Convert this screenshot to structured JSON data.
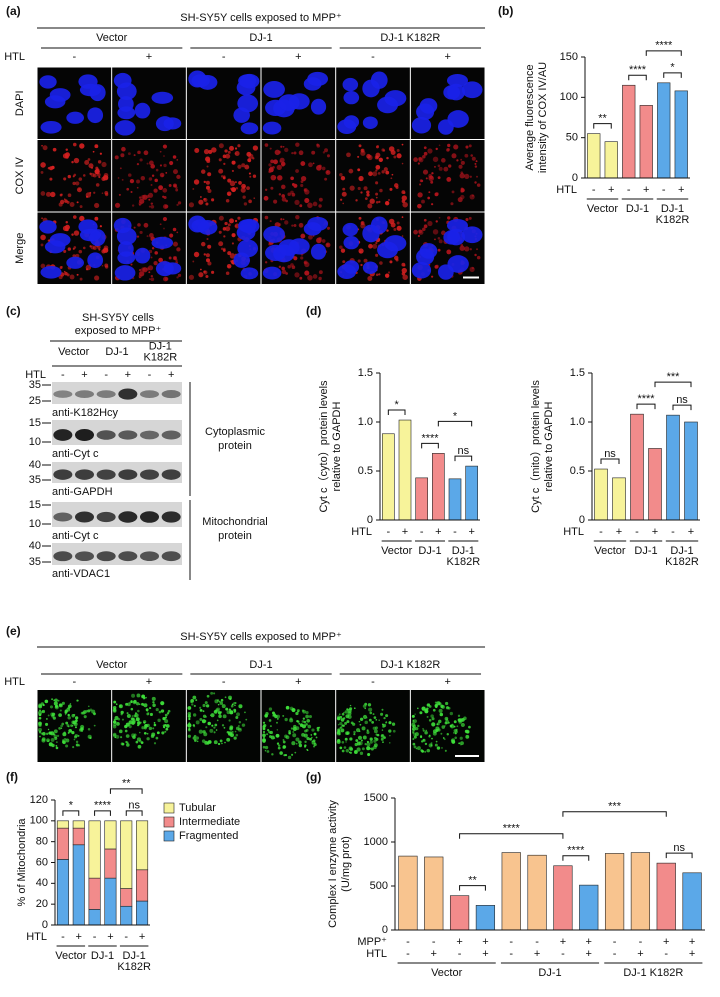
{
  "panel_a": {
    "label": "(a)",
    "title": "SH-SY5Y cells exposed to MPP⁺",
    "groups": [
      "Vector",
      "DJ-1",
      "DJ-1 K182R"
    ],
    "row_label": "HTL",
    "conditions": [
      "-",
      "+",
      "-",
      "+",
      "-",
      "+"
    ],
    "channels": [
      "DAPI",
      "COX IV",
      "Merge"
    ]
  },
  "panel_c": {
    "label": "(c)",
    "title": [
      "SH-SY5Y cells",
      "exposed to MPP⁺"
    ],
    "groups": [
      [
        "Vector"
      ],
      [
        "DJ-1"
      ],
      [
        "DJ-1",
        "K182R"
      ]
    ],
    "row_label": "HTL",
    "conditions": [
      "-",
      "+",
      "-",
      "+",
      "-",
      "+"
    ],
    "blots": [
      {
        "markers": [
          35,
          25
        ],
        "label": "anti-K182Hcy"
      },
      {
        "markers": [
          15,
          10
        ],
        "label": "anti-Cyt c"
      },
      {
        "markers": [
          40,
          35
        ],
        "label": "anti-GAPDH"
      },
      {
        "markers": [
          15,
          10
        ],
        "label": "anti-Cyt c"
      },
      {
        "markers": [
          40,
          35
        ],
        "label": "anti-VDAC1"
      }
    ],
    "fractions": [
      [
        "Cytoplasmic",
        "protein"
      ],
      [
        "Mitochondrial",
        "protein"
      ]
    ]
  },
  "panel_e": {
    "label": "(e)",
    "title": "SH-SY5Y cells exposed to MPP⁺",
    "groups": [
      "Vector",
      "DJ-1",
      "DJ-1 K182R"
    ],
    "row_label": "HTL",
    "conditions": [
      "-",
      "+",
      "-",
      "+",
      "-",
      "+"
    ]
  },
  "chart_data": [
    {
      "type": "bar",
      "panel": "(b)",
      "ylabel": [
        "Average fluorescence",
        "intensity of COX IV/AU"
      ],
      "values": [
        55,
        45,
        115,
        90,
        118,
        108
      ],
      "colors": [
        "#f7f39a",
        "#f7f39a",
        "#f28b8b",
        "#f28b8b",
        "#5ba8e8",
        "#5ba8e8"
      ],
      "category_rows": [
        {
          "label": "HTL",
          "values": [
            "-",
            "+",
            "-",
            "+",
            "-",
            "+"
          ]
        }
      ],
      "groups": [
        [
          "Vector"
        ],
        [
          "DJ-1"
        ],
        [
          "DJ-1",
          "K182R"
        ]
      ],
      "ylim": [
        0,
        150
      ],
      "yticks": [
        0,
        50,
        100,
        150
      ],
      "annotations": [
        {
          "text": "**",
          "from": 0,
          "to": 1
        },
        {
          "text": "****",
          "from": 2,
          "to": 3
        },
        {
          "text": "*",
          "from": 4,
          "to": 5
        },
        {
          "text": "****",
          "from": 3,
          "to": 5
        }
      ]
    },
    {
      "type": "bar",
      "panel": "(d)",
      "ylabel": [
        "Cyt c（cyto）protein levels",
        "relative to GAPDH"
      ],
      "values": [
        0.88,
        1.02,
        0.43,
        0.68,
        0.42,
        0.55
      ],
      "colors": [
        "#f7f39a",
        "#f7f39a",
        "#f28b8b",
        "#f28b8b",
        "#5ba8e8",
        "#5ba8e8"
      ],
      "category_rows": [
        {
          "label": "HTL",
          "values": [
            "-",
            "+",
            "-",
            "+",
            "-",
            "+"
          ]
        }
      ],
      "groups": [
        [
          "Vector"
        ],
        [
          "DJ-1"
        ],
        [
          "DJ-1",
          "K182R"
        ]
      ],
      "ylim": [
        0,
        1.5
      ],
      "yticks": [
        0,
        0.5,
        {
          "value": 1,
          "label": "1.0"
        },
        1.5
      ],
      "annotations": [
        {
          "text": "*",
          "from": 0,
          "to": 1
        },
        {
          "text": "****",
          "from": 2,
          "to": 3
        },
        {
          "text": "ns",
          "from": 4,
          "to": 5
        },
        {
          "text": "*",
          "from": 3,
          "to": 5
        }
      ]
    },
    {
      "type": "bar",
      "ylabel": [
        "Cyt c（mito）protein levels",
        "relative to GAPDH"
      ],
      "values": [
        0.52,
        0.43,
        1.08,
        0.73,
        1.07,
        1.0
      ],
      "colors": [
        "#f7f39a",
        "#f7f39a",
        "#f28b8b",
        "#f28b8b",
        "#5ba8e8",
        "#5ba8e8"
      ],
      "category_rows": [
        {
          "label": "HTL",
          "values": [
            "-",
            "+",
            "-",
            "+",
            "-",
            "+"
          ]
        }
      ],
      "groups": [
        [
          "Vector"
        ],
        [
          "DJ-1"
        ],
        [
          "DJ-1",
          "K182R"
        ]
      ],
      "ylim": [
        0,
        1.5
      ],
      "yticks": [
        0,
        0.5,
        {
          "value": 1,
          "label": "1.0"
        },
        1.5
      ],
      "annotations": [
        {
          "text": "ns",
          "from": 0,
          "to": 1
        },
        {
          "text": "****",
          "from": 2,
          "to": 3
        },
        {
          "text": "ns",
          "from": 4,
          "to": 5
        },
        {
          "text": "***",
          "from": 3,
          "to": 5
        }
      ]
    },
    {
      "type": "stacked_bar",
      "panel": "(f)",
      "ylabel": [
        "% of Mitochondria"
      ],
      "series": [
        {
          "name": "Fragmented",
          "color": "#5ba8e8",
          "values": [
            63,
            77,
            15,
            45,
            18,
            23
          ]
        },
        {
          "name": "Intermediate",
          "color": "#f28b8b",
          "values": [
            30,
            16,
            30,
            28,
            17,
            30
          ]
        },
        {
          "name": "Tubular",
          "color": "#f7f39a",
          "values": [
            7,
            7,
            55,
            27,
            65,
            47
          ]
        }
      ],
      "category_rows": [
        {
          "label": "HTL",
          "values": [
            "-",
            "+",
            "-",
            "+",
            "-",
            "+"
          ]
        }
      ],
      "groups": [
        [
          "Vector"
        ],
        [
          "DJ-1"
        ],
        [
          "DJ-1",
          "K182R"
        ]
      ],
      "ylim": [
        0,
        120
      ],
      "yticks": [
        0,
        20,
        40,
        60,
        80,
        100,
        120
      ],
      "legend": "upper right",
      "annotations": [
        {
          "text": "*",
          "from": 0,
          "to": 1
        },
        {
          "text": "****",
          "from": 2,
          "to": 3
        },
        {
          "text": "ns",
          "from": 4,
          "to": 5
        },
        {
          "text": "**",
          "from": 3,
          "to": 5
        }
      ]
    },
    {
      "type": "bar",
      "panel": "(g)",
      "ylabel": [
        "Complex I enzyme activity",
        "(U/mg prot)"
      ],
      "values": [
        840,
        830,
        390,
        280,
        880,
        850,
        730,
        510,
        870,
        880,
        760,
        650
      ],
      "colors": [
        "#f8c48f",
        "#f8c48f",
        "#f28b8b",
        "#5ba8e8",
        "#f8c48f",
        "#f8c48f",
        "#f28b8b",
        "#5ba8e8",
        "#f8c48f",
        "#f8c48f",
        "#f28b8b",
        "#5ba8e8"
      ],
      "category_rows": [
        {
          "label": "MPP⁺",
          "values": [
            "-",
            "-",
            "+",
            "+",
            "-",
            "-",
            "+",
            "+",
            "-",
            "-",
            "+",
            "+"
          ]
        },
        {
          "label": "HTL",
          "values": [
            "-",
            "+",
            "-",
            "+",
            "-",
            "+",
            "-",
            "+",
            "-",
            "+",
            "-",
            "+"
          ]
        }
      ],
      "groups": [
        [
          "Vector"
        ],
        [
          "DJ-1"
        ],
        [
          "DJ-1 K182R"
        ]
      ],
      "ylim": [
        0,
        1500
      ],
      "yticks": [
        0,
        500,
        1000,
        1500
      ],
      "annotations": [
        {
          "text": "**",
          "from": 2,
          "to": 3
        },
        {
          "text": "****",
          "from": 6,
          "to": 7
        },
        {
          "text": "ns",
          "from": 10,
          "to": 11
        },
        {
          "text": "****",
          "from": 2,
          "to": 6
        },
        {
          "text": "***",
          "from": 6,
          "to": 10
        }
      ]
    }
  ]
}
